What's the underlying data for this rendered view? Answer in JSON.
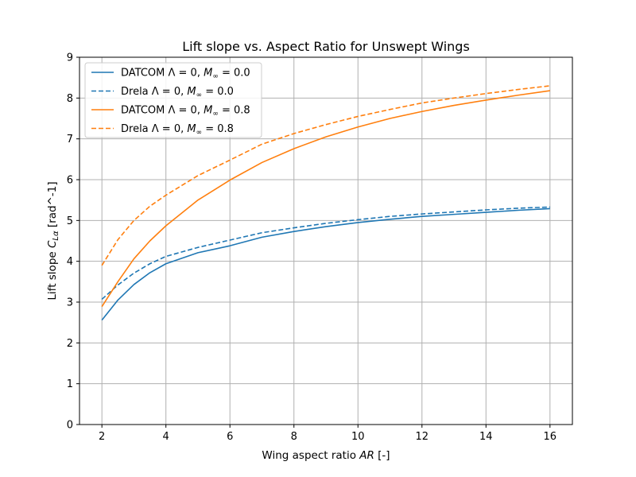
{
  "chart_data": {
    "type": "line",
    "title": "Lift slope vs. Aspect Ratio for Unswept Wings",
    "xlabel_prefix": "Wing aspect ratio ",
    "xlabel_var": "AR",
    "xlabel_suffix": " [-]",
    "ylabel_prefix": "Lift slope ",
    "ylabel_var": "C",
    "ylabel_sub": "Lα",
    "ylabel_suffix": " [rad^-1]",
    "xlim": [
      1.3,
      16.7
    ],
    "ylim": [
      0,
      9
    ],
    "xticks": [
      2,
      4,
      6,
      8,
      10,
      12,
      14,
      16
    ],
    "yticks": [
      0,
      1,
      2,
      3,
      4,
      5,
      6,
      7,
      8,
      9
    ],
    "grid": true,
    "legend_position": "upper left",
    "x": [
      2,
      2.5,
      3,
      3.5,
      4,
      5,
      6,
      7,
      8,
      9,
      10,
      11,
      12,
      13,
      14,
      15,
      16
    ],
    "series": [
      {
        "name": "DATCOM Λ = 0, M∞ = 0.0",
        "label_pre": "DATCOM Λ = 0, ",
        "label_m": "M",
        "label_sub": "∞",
        "label_post": " = 0.0",
        "color": "#1f77b4",
        "dash": "solid",
        "values": [
          2.56,
          3.05,
          3.43,
          3.72,
          3.94,
          4.21,
          4.38,
          4.59,
          4.73,
          4.85,
          4.95,
          5.03,
          5.1,
          5.15,
          5.2,
          5.25,
          5.29
        ]
      },
      {
        "name": "Drela Λ = 0, M∞ = 0.0",
        "label_pre": "Drela Λ = 0, ",
        "label_m": "M",
        "label_sub": "∞",
        "label_post": " = 0.0",
        "color": "#1f77b4",
        "dash": "dashed",
        "values": [
          3.07,
          3.42,
          3.71,
          3.94,
          4.12,
          4.34,
          4.52,
          4.7,
          4.82,
          4.93,
          5.02,
          5.1,
          5.16,
          5.21,
          5.26,
          5.3,
          5.33
        ]
      },
      {
        "name": "DATCOM Λ = 0, M∞ = 0.8",
        "label_pre": "DATCOM Λ = 0, ",
        "label_m": "M",
        "label_sub": "∞",
        "label_post": " = 0.8",
        "color": "#ff7f0e",
        "dash": "solid",
        "values": [
          2.89,
          3.5,
          4.06,
          4.5,
          4.87,
          5.5,
          5.99,
          6.42,
          6.76,
          7.05,
          7.29,
          7.5,
          7.67,
          7.82,
          7.95,
          8.07,
          8.18
        ]
      },
      {
        "name": "Drela Λ = 0, M∞ = 0.8",
        "label_pre": "Drela Λ = 0, ",
        "label_m": "M",
        "label_sub": "∞",
        "label_post": " = 0.8",
        "color": "#ff7f0e",
        "dash": "dashed",
        "values": [
          3.9,
          4.53,
          5.0,
          5.35,
          5.62,
          6.1,
          6.48,
          6.87,
          7.13,
          7.35,
          7.55,
          7.72,
          7.88,
          8.0,
          8.11,
          8.21,
          8.3
        ]
      }
    ]
  }
}
